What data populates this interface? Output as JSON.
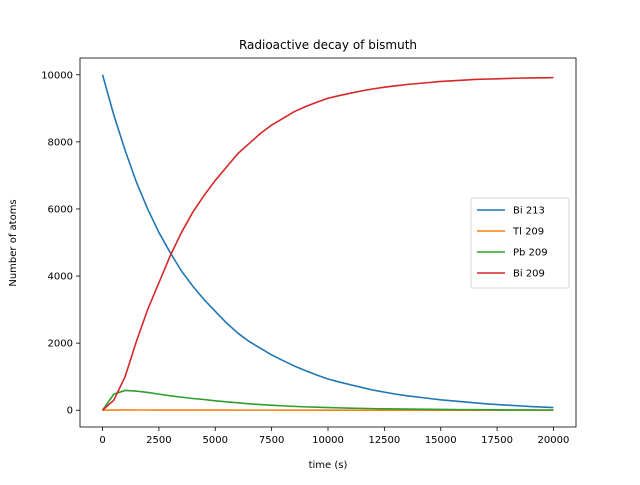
{
  "chart_data": {
    "type": "line",
    "title": "Radioactive decay of bismuth",
    "xlabel": "time (s)",
    "ylabel": "Number of atoms",
    "xlim": [
      -1000,
      21000
    ],
    "ylim": [
      -500,
      10500
    ],
    "xticks": [
      0,
      2500,
      5000,
      7500,
      10000,
      12500,
      15000,
      17500,
      20000
    ],
    "xtick_labels": [
      "0",
      "2500",
      "5000",
      "7500",
      "10000",
      "12500",
      "15000",
      "17500",
      "20000"
    ],
    "yticks": [
      0,
      2000,
      4000,
      6000,
      8000,
      10000
    ],
    "ytick_labels": [
      "0",
      "2000",
      "4000",
      "6000",
      "8000",
      "10000"
    ],
    "grid": false,
    "legend_position": "center-right",
    "x": [
      0,
      500,
      1000,
      1500,
      2000,
      2500,
      3000,
      3500,
      4000,
      4500,
      5000,
      5500,
      6000,
      6500,
      7000,
      7500,
      8000,
      8500,
      9000,
      9500,
      10000,
      10500,
      11000,
      11500,
      12000,
      12500,
      13000,
      13500,
      14000,
      14500,
      15000,
      15500,
      16000,
      16500,
      17000,
      17500,
      18000,
      18500,
      19000,
      19500,
      20000
    ],
    "series": [
      {
        "name": "Bi 213",
        "color": "#1f77b4",
        "values": [
          10000,
          8800,
          7750,
          6800,
          6000,
          5300,
          4700,
          4150,
          3700,
          3300,
          2950,
          2600,
          2300,
          2050,
          1850,
          1650,
          1480,
          1320,
          1180,
          1050,
          930,
          840,
          760,
          680,
          600,
          540,
          480,
          430,
          390,
          350,
          310,
          280,
          250,
          220,
          190,
          170,
          150,
          130,
          110,
          95,
          80
        ]
      },
      {
        "name": "Tl 209",
        "color": "#ff7f0e",
        "values": [
          0,
          5,
          8,
          7,
          7,
          6,
          6,
          5,
          5,
          5,
          4,
          4,
          3,
          3,
          3,
          3,
          2,
          2,
          2,
          2,
          2,
          2,
          1,
          1,
          1,
          1,
          1,
          1,
          1,
          1,
          1,
          1,
          1,
          0,
          0,
          0,
          0,
          0,
          0,
          0,
          0
        ]
      },
      {
        "name": "Pb 209",
        "color": "#2ca02c",
        "values": [
          0,
          480,
          590,
          570,
          530,
          480,
          430,
          390,
          350,
          320,
          280,
          250,
          220,
          190,
          170,
          150,
          130,
          115,
          100,
          90,
          80,
          70,
          62,
          55,
          48,
          43,
          38,
          34,
          30,
          26,
          23,
          20,
          18,
          16,
          14,
          12,
          10,
          9,
          8,
          7,
          6
        ]
      },
      {
        "name": "Bi 209",
        "color": "#d62728",
        "values": [
          0,
          300,
          1000,
          2050,
          3000,
          3800,
          4600,
          5300,
          5900,
          6400,
          6850,
          7250,
          7650,
          7950,
          8250,
          8500,
          8700,
          8900,
          9050,
          9180,
          9300,
          9380,
          9450,
          9520,
          9580,
          9630,
          9670,
          9710,
          9740,
          9770,
          9800,
          9820,
          9840,
          9860,
          9870,
          9880,
          9890,
          9900,
          9905,
          9910,
          9915
        ]
      }
    ]
  }
}
